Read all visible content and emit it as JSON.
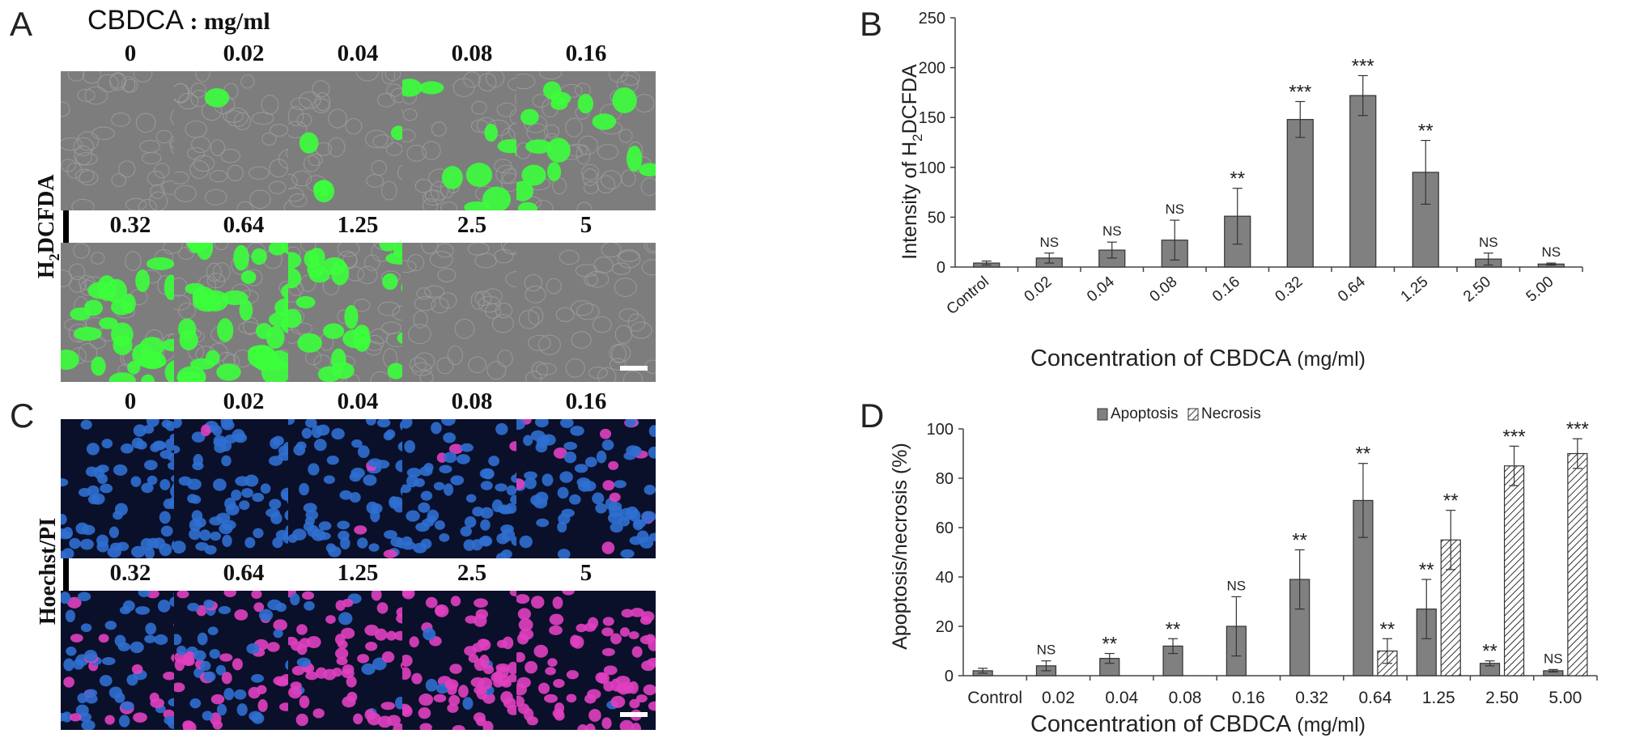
{
  "panel_a": {
    "letter": "A",
    "header_drug": "CBDCA",
    "header_unit": " : mg/ml",
    "row_label_main": "H",
    "row_label_sub": "2",
    "row_label_rest": "DCFDA",
    "concentrations": [
      "0",
      "0.02",
      "0.04",
      "0.08",
      "0.16",
      "0.32",
      "0.64",
      "1.25",
      "2.5",
      "5"
    ],
    "colors": {
      "background": "#7d7d7d",
      "fluor": "#3cff3c"
    },
    "green_coverage": [
      0,
      0.02,
      0.08,
      0.15,
      0.25,
      0.55,
      0.65,
      0.5,
      0.02,
      0
    ]
  },
  "panel_c": {
    "letter": "C",
    "row_label": "Hoechst/PI",
    "concentrations": [
      "0",
      "0.02",
      "0.04",
      "0.08",
      "0.16",
      "0.32",
      "0.64",
      "1.25",
      "2.5",
      "5"
    ],
    "colors": {
      "background": "#0a0f2a",
      "hoechst": "#2f6fd0",
      "pi": "#e040c0"
    },
    "pi_fraction": [
      0,
      0.02,
      0.05,
      0.1,
      0.15,
      0.3,
      0.45,
      0.75,
      0.9,
      0.95
    ]
  },
  "chart_data": [
    {
      "type": "bar",
      "letter": "B",
      "categories": [
        "Control",
        "0.02",
        "0.04",
        "0.08",
        "0.16",
        "0.32",
        "0.64",
        "1.25",
        "2.50",
        "5.00"
      ],
      "series": [
        {
          "values": [
            4,
            9,
            17,
            27,
            51,
            148,
            172,
            95,
            8,
            3
          ],
          "errors": [
            2,
            5,
            8,
            20,
            28,
            18,
            20,
            32,
            6,
            1
          ],
          "color": "#808080"
        }
      ],
      "annotations": [
        "",
        "NS",
        "NS",
        "NS",
        "**",
        "***",
        "***",
        "**",
        "NS",
        "NS"
      ],
      "ylabel_main": "Intensity of H",
      "ylabel_sub": "2",
      "ylabel_rest": "DCFDA",
      "xlabel_main": "Concentration of CBDCA",
      "xlabel_unit": " (mg/ml)",
      "ylim": [
        0,
        250
      ],
      "yticks": [
        "0",
        "50",
        "100",
        "150",
        "200",
        "250"
      ]
    },
    {
      "type": "bar",
      "letter": "D",
      "categories": [
        "Control",
        "0.02",
        "0.04",
        "0.08",
        "0.16",
        "0.32",
        "0.64",
        "1.25",
        "2.50",
        "5.00"
      ],
      "series": [
        {
          "name": "Apoptosis",
          "values": [
            2,
            4,
            7,
            12,
            20,
            39,
            71,
            27,
            5,
            2
          ],
          "errors": [
            1,
            2,
            2,
            3,
            12,
            12,
            15,
            12,
            1,
            0.5
          ],
          "annotations": [
            "",
            "NS",
            "**",
            "**",
            "NS",
            "**",
            "**",
            "**",
            "**",
            "NS"
          ],
          "color": "#808080"
        },
        {
          "name": "Necrosis",
          "values": [
            null,
            null,
            null,
            null,
            null,
            null,
            10,
            55,
            85,
            90
          ],
          "errors": [
            null,
            null,
            null,
            null,
            null,
            null,
            5,
            12,
            8,
            6
          ],
          "annotations": [
            "",
            "",
            "",
            "",
            "",
            "",
            "**",
            "**",
            "***",
            "***"
          ],
          "color": "#ffffff"
        }
      ],
      "ylabel": "Apoptosis/necrosis (%)",
      "xlabel_main": "Concentration of CBDCA",
      "xlabel_unit": " (mg/ml)",
      "ylim": [
        0,
        100
      ],
      "yticks": [
        "0",
        "20",
        "40",
        "60",
        "80",
        "100"
      ],
      "legend_position": "top"
    }
  ]
}
